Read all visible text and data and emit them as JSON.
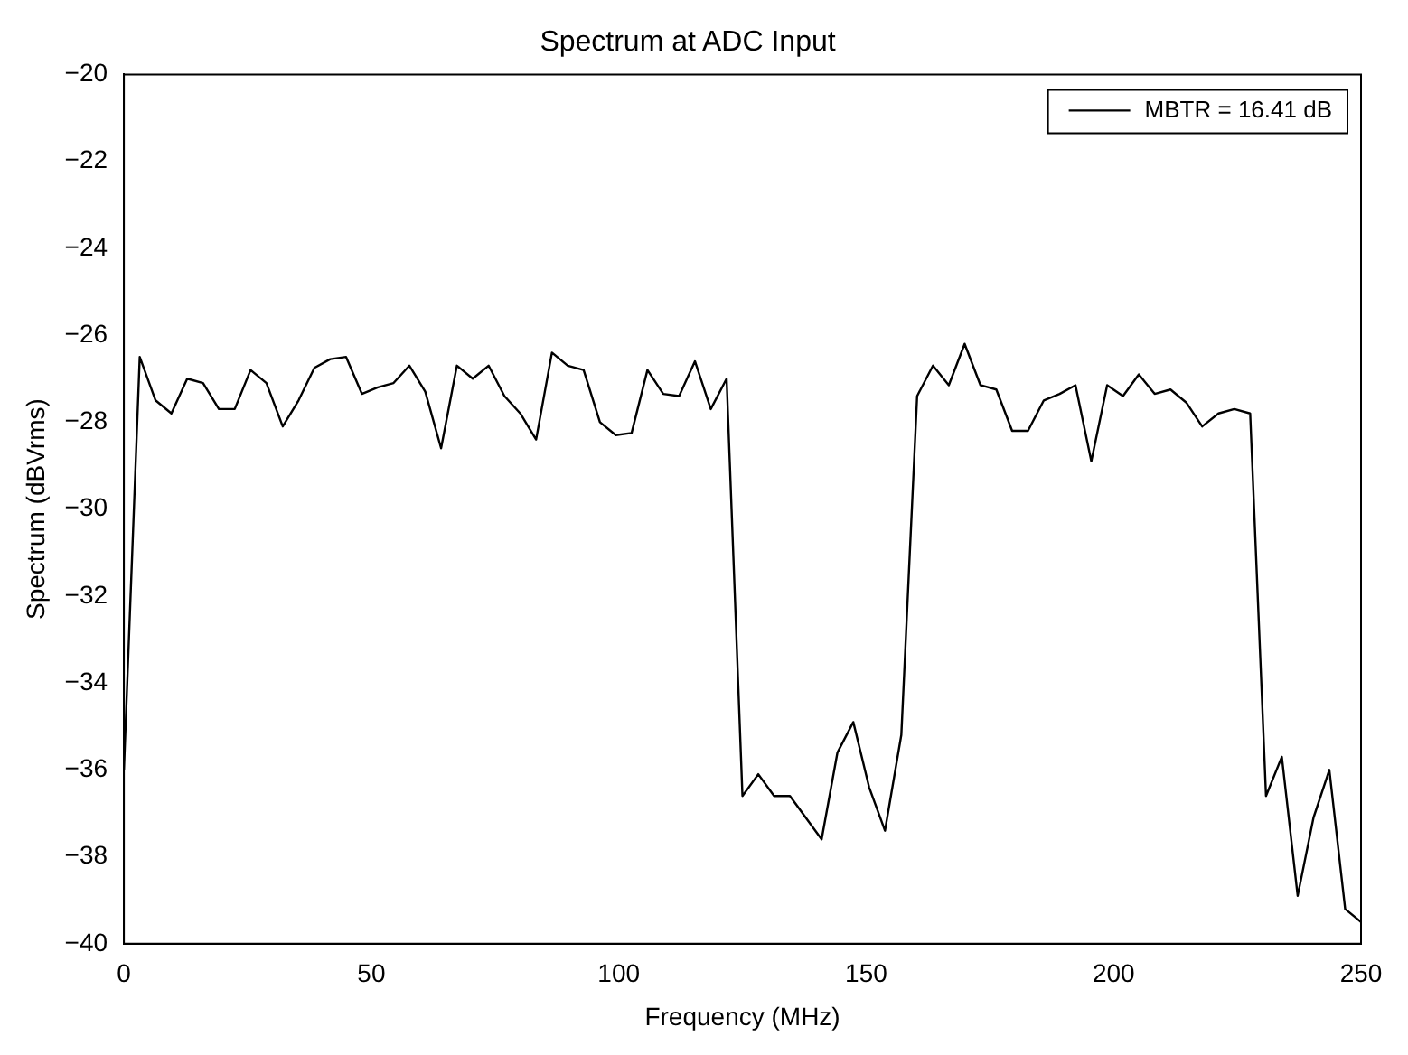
{
  "chart_data": {
    "type": "line",
    "title": "Spectrum at ADC Input",
    "xlabel": "Frequency (MHz)",
    "ylabel": "Spectrum (dBVrms)",
    "x": [
      0,
      3.2,
      6.4,
      9.6,
      12.8,
      16.0,
      19.2,
      22.4,
      25.6,
      28.8,
      32.1,
      35.3,
      38.5,
      41.7,
      44.9,
      48.1,
      51.3,
      54.5,
      57.7,
      60.9,
      64.1,
      67.3,
      70.5,
      73.7,
      76.9,
      80.1,
      83.3,
      86.5,
      89.7,
      92.9,
      96.2,
      99.4,
      102.6,
      105.8,
      109.0,
      112.2,
      115.4,
      118.6,
      121.8,
      125.0,
      128.2,
      131.4,
      134.6,
      137.8,
      141.0,
      144.2,
      147.4,
      150.6,
      153.8,
      157.1,
      160.3,
      163.5,
      166.7,
      169.9,
      173.1,
      176.3,
      179.5,
      182.7,
      185.9,
      189.1,
      192.3,
      195.5,
      198.7,
      201.9,
      205.1,
      208.3,
      211.5,
      214.7,
      217.9,
      221.2,
      224.4,
      227.6,
      230.8,
      234.0,
      237.2,
      240.4,
      243.6,
      246.8,
      250.0
    ],
    "series": [
      {
        "name": "MBTR = 16.41 dB",
        "color": "#000000",
        "values": [
          -36.0,
          -26.5,
          -27.5,
          -27.8,
          -27.0,
          -27.1,
          -27.7,
          -27.7,
          -26.8,
          -27.1,
          -28.1,
          -27.5,
          -26.75,
          -26.55,
          -26.5,
          -27.35,
          -27.2,
          -27.1,
          -26.7,
          -27.3,
          -28.6,
          -26.7,
          -27.0,
          -26.7,
          -27.4,
          -27.8,
          -28.4,
          -26.4,
          -26.7,
          -26.8,
          -28.0,
          -28.3,
          -28.25,
          -26.8,
          -27.35,
          -27.4,
          -26.6,
          -27.7,
          -27.0,
          -36.6,
          -36.1,
          -36.6,
          -36.6,
          -37.1,
          -37.6,
          -35.6,
          -34.9,
          -36.4,
          -37.4,
          -35.2,
          -27.4,
          -26.7,
          -27.15,
          -26.2,
          -27.15,
          -27.25,
          -28.2,
          -28.2,
          -27.5,
          -27.35,
          -27.15,
          -28.9,
          -27.15,
          -27.4,
          -26.9,
          -27.35,
          -27.25,
          -27.55,
          -28.1,
          -27.8,
          -27.7,
          -27.8,
          -36.6,
          -35.7,
          -38.9,
          -37.1,
          -36.0,
          -39.2,
          -39.5
        ]
      }
    ],
    "xlim": [
      0,
      250
    ],
    "xticks": [
      0,
      50,
      100,
      150,
      200,
      250
    ],
    "ylim": [
      -40,
      -20
    ],
    "yticks": [
      {
        "value": -40,
        "label": "−40"
      },
      {
        "value": -38,
        "label": "−38"
      },
      {
        "value": -36,
        "label": "−36"
      },
      {
        "value": -34,
        "label": "−34"
      },
      {
        "value": -32,
        "label": "−32"
      },
      {
        "value": -30,
        "label": "−30"
      },
      {
        "value": -28,
        "label": "−28"
      },
      {
        "value": -26,
        "label": "−26"
      },
      {
        "value": -24,
        "label": "−24"
      },
      {
        "value": -22,
        "label": "−22"
      },
      {
        "value": -20,
        "label": "−20"
      }
    ],
    "legend": "top right",
    "marker": "none",
    "line_style": "solid"
  }
}
